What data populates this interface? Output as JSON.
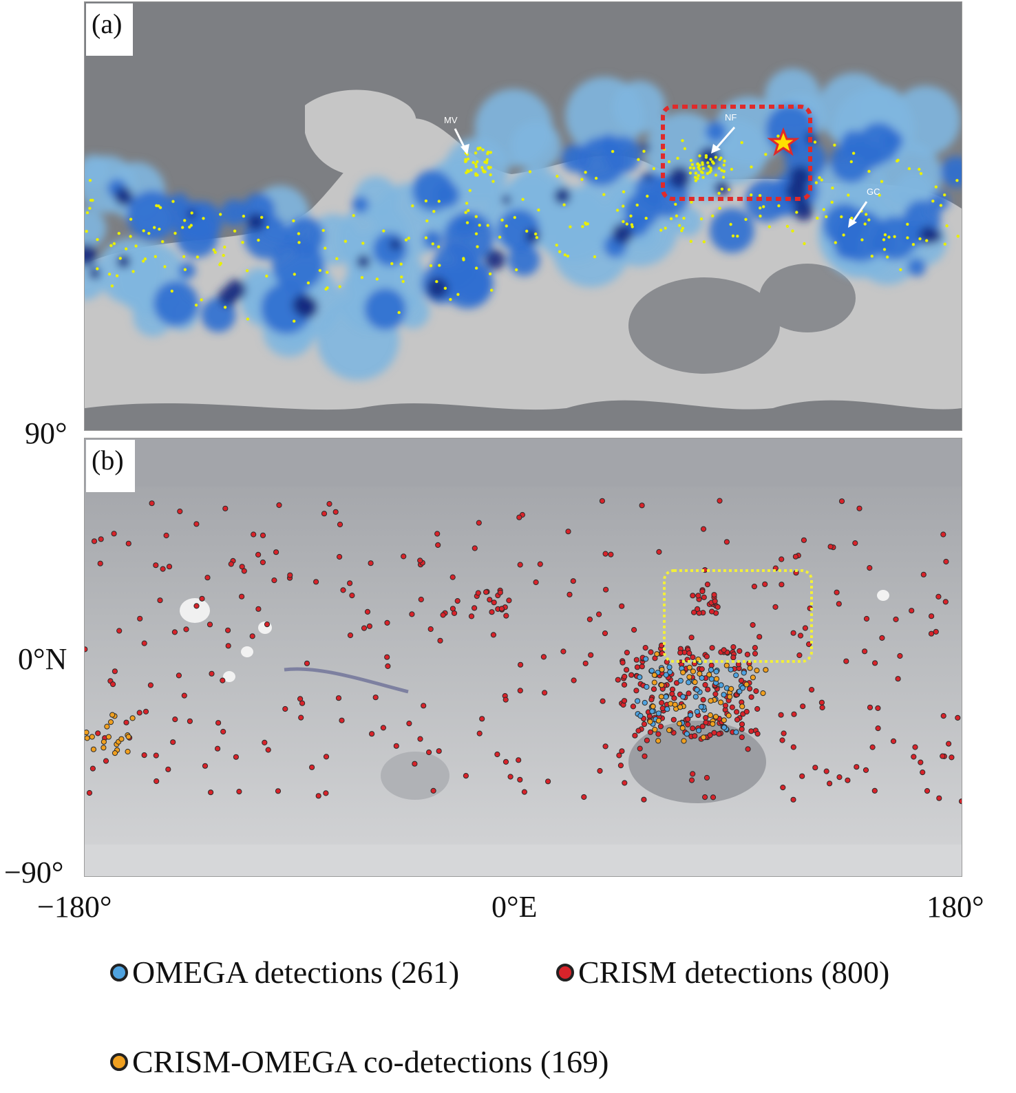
{
  "panels": {
    "a": {
      "tag": "(a)",
      "feature_labels": [
        "MV",
        "NF",
        "GC"
      ],
      "box_color": "#e02a2a",
      "star_color": "#ffe000"
    },
    "b": {
      "tag": "(b)",
      "box_color": "#f2ef3a"
    }
  },
  "axes": {
    "lat_top": "90°",
    "lat_mid": "0°N",
    "lat_bottom": "−90°",
    "lon_left": "−180°",
    "lon_mid": "0°E",
    "lon_right": "180°"
  },
  "legend": {
    "omega": {
      "label": "OMEGA detections (261)",
      "color": "#4fa3e0"
    },
    "crism": {
      "label": "CRISM detections (800)",
      "color": "#d8232a"
    },
    "co": {
      "label": "CRISM-OMEGA co-detections (169)",
      "color": "#f0a020"
    }
  },
  "colors": {
    "panel_a_background": "#7d7f83",
    "panel_a_highlands": "#c6c6c6",
    "panel_a_density_light": "#7fb6df",
    "panel_a_density_mid": "#2f6ed0",
    "panel_a_density_dark": "#142a80",
    "panel_a_points": "#e8f000",
    "panel_b_background": "#c8c9cc",
    "panel_b_lowlands": "#9fa1a6"
  }
}
